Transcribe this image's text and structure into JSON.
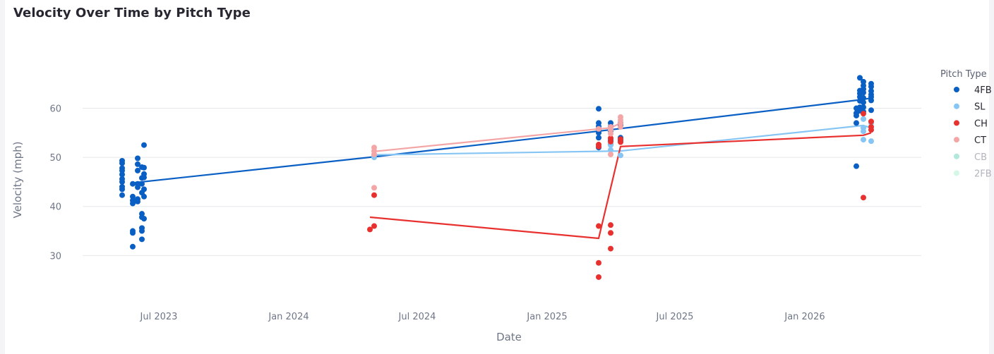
{
  "title": "Velocity Over Time by Pitch Type",
  "chart_data": {
    "type": "scatter",
    "xlabel": "Date",
    "ylabel": "Velocity (mph)",
    "x_ticks": [
      {
        "date": "2023-07-01",
        "label": "Jul 2023"
      },
      {
        "date": "2024-01-01",
        "label": "Jan 2024"
      },
      {
        "date": "2024-07-01",
        "label": "Jul 2024"
      },
      {
        "date": "2025-01-01",
        "label": "Jan 2025"
      },
      {
        "date": "2025-07-01",
        "label": "Jul 2025"
      },
      {
        "date": "2026-01-01",
        "label": "Jan 2026"
      }
    ],
    "xlim": [
      "2023-03-15",
      "2026-06-15"
    ],
    "y_ticks": [
      30,
      40,
      50,
      60
    ],
    "ylim": [
      22,
      72
    ],
    "grid": true,
    "legend": {
      "title": "Pitch Type",
      "placement": "right"
    },
    "series": [
      {
        "name": "4FB",
        "color": "#0a5fc4",
        "active": true,
        "points": [
          [
            "2023-05-10",
            49.3
          ],
          [
            "2023-05-10",
            48.8
          ],
          [
            "2023-05-10",
            47.8
          ],
          [
            "2023-05-10",
            47.3
          ],
          [
            "2023-05-10",
            46.5
          ],
          [
            "2023-05-10",
            45.6
          ],
          [
            "2023-05-10",
            45.0
          ],
          [
            "2023-05-10",
            44.0
          ],
          [
            "2023-05-10",
            43.5
          ],
          [
            "2023-05-10",
            42.3
          ],
          [
            "2023-05-25",
            44.6
          ],
          [
            "2023-05-25",
            42.0
          ],
          [
            "2023-05-25",
            41.2
          ],
          [
            "2023-05-25",
            40.6
          ],
          [
            "2023-05-25",
            35.0
          ],
          [
            "2023-05-25",
            34.6
          ],
          [
            "2023-05-25",
            31.8
          ],
          [
            "2023-06-01",
            49.8
          ],
          [
            "2023-06-01",
            48.6
          ],
          [
            "2023-06-01",
            47.3
          ],
          [
            "2023-06-01",
            44.6
          ],
          [
            "2023-06-01",
            43.9
          ],
          [
            "2023-06-01",
            41.5
          ],
          [
            "2023-06-01",
            41.0
          ],
          [
            "2023-06-07",
            48.0
          ],
          [
            "2023-06-07",
            45.8
          ],
          [
            "2023-06-07",
            44.6
          ],
          [
            "2023-06-07",
            42.8
          ],
          [
            "2023-06-07",
            38.5
          ],
          [
            "2023-06-07",
            37.8
          ],
          [
            "2023-06-07",
            35.6
          ],
          [
            "2023-06-07",
            35.0
          ],
          [
            "2023-06-07",
            33.3
          ],
          [
            "2023-06-10",
            52.5
          ],
          [
            "2023-06-10",
            47.9
          ],
          [
            "2023-06-10",
            46.6
          ],
          [
            "2023-06-10",
            45.9
          ],
          [
            "2023-06-10",
            43.5
          ],
          [
            "2023-06-10",
            42.0
          ],
          [
            "2023-06-10",
            37.5
          ],
          [
            "2025-03-15",
            59.9
          ],
          [
            "2025-03-15",
            57.0
          ],
          [
            "2025-03-15",
            56.3
          ],
          [
            "2025-03-15",
            55.8
          ],
          [
            "2025-03-15",
            55.0
          ],
          [
            "2025-03-15",
            54.0
          ],
          [
            "2025-03-15",
            52.0
          ],
          [
            "2025-04-01",
            57.0
          ],
          [
            "2025-04-01",
            56.3
          ],
          [
            "2025-04-01",
            55.4
          ],
          [
            "2025-04-01",
            53.5
          ],
          [
            "2025-04-01",
            52.6
          ],
          [
            "2025-04-15",
            57.0
          ],
          [
            "2025-04-15",
            56.5
          ],
          [
            "2025-04-15",
            54.0
          ],
          [
            "2025-04-15",
            53.4
          ],
          [
            "2026-03-15",
            60.0
          ],
          [
            "2026-03-15",
            59.0
          ],
          [
            "2026-03-15",
            58.5
          ],
          [
            "2026-03-15",
            57.0
          ],
          [
            "2026-03-15",
            48.2
          ],
          [
            "2026-03-20",
            66.2
          ],
          [
            "2026-03-20",
            63.6
          ],
          [
            "2026-03-20",
            63.0
          ],
          [
            "2026-03-20",
            62.3
          ],
          [
            "2026-03-20",
            61.5
          ],
          [
            "2026-03-20",
            60.2
          ],
          [
            "2026-03-20",
            59.5
          ],
          [
            "2026-03-25",
            65.4
          ],
          [
            "2026-03-25",
            64.6
          ],
          [
            "2026-03-25",
            63.9
          ],
          [
            "2026-03-25",
            63.2
          ],
          [
            "2026-03-25",
            62.1
          ],
          [
            "2026-03-25",
            61.2
          ],
          [
            "2026-03-25",
            60.2
          ],
          [
            "2026-03-25",
            59.3
          ],
          [
            "2026-04-05",
            65.0
          ],
          [
            "2026-04-05",
            64.4
          ],
          [
            "2026-04-05",
            63.5
          ],
          [
            "2026-04-05",
            62.8
          ],
          [
            "2026-04-05",
            62.3
          ],
          [
            "2026-04-05",
            61.6
          ],
          [
            "2026-04-05",
            59.6
          ]
        ],
        "trend": [
          [
            "2023-05-25",
            44.8
          ],
          [
            "2024-05-01",
            50.1
          ],
          [
            "2025-03-25",
            55.5
          ],
          [
            "2026-03-25",
            61.8
          ],
          [
            "2026-04-05",
            62.1
          ]
        ]
      },
      {
        "name": "SL",
        "color": "#86c5f4",
        "active": true,
        "points": [
          [
            "2024-05-01",
            50.5
          ],
          [
            "2024-05-01",
            50.0
          ],
          [
            "2025-04-01",
            51.5
          ],
          [
            "2025-04-01",
            52.5
          ],
          [
            "2025-04-15",
            50.4
          ],
          [
            "2026-03-25",
            57.8
          ],
          [
            "2026-03-25",
            56.0
          ],
          [
            "2026-03-25",
            55.3
          ],
          [
            "2026-03-25",
            53.6
          ],
          [
            "2026-04-05",
            57.0
          ],
          [
            "2026-04-05",
            55.6
          ],
          [
            "2026-04-05",
            53.3
          ]
        ],
        "trend": [
          [
            "2024-05-01",
            50.5
          ],
          [
            "2025-04-15",
            51.3
          ],
          [
            "2026-03-25",
            56.5
          ],
          [
            "2026-04-05",
            56.0
          ]
        ]
      },
      {
        "name": "CH",
        "color": "#e8312f",
        "active": true,
        "points": [
          [
            "2024-04-25",
            35.3
          ],
          [
            "2024-05-01",
            42.3
          ],
          [
            "2024-05-01",
            36.0
          ],
          [
            "2025-03-15",
            52.6
          ],
          [
            "2025-03-15",
            52.2
          ],
          [
            "2025-03-15",
            36.0
          ],
          [
            "2025-03-15",
            28.5
          ],
          [
            "2025-03-15",
            25.6
          ],
          [
            "2025-04-01",
            53.9
          ],
          [
            "2025-04-01",
            53.2
          ],
          [
            "2025-04-01",
            36.2
          ],
          [
            "2025-04-01",
            34.6
          ],
          [
            "2025-04-01",
            31.4
          ],
          [
            "2025-04-15",
            53.7
          ],
          [
            "2025-04-15",
            53.1
          ],
          [
            "2026-03-25",
            58.9
          ],
          [
            "2026-03-25",
            41.8
          ],
          [
            "2026-04-05",
            57.3
          ],
          [
            "2026-04-05",
            56.2
          ],
          [
            "2026-04-05",
            55.6
          ]
        ],
        "trend": [
          [
            "2024-04-25",
            37.8
          ],
          [
            "2025-03-15",
            33.5
          ],
          [
            "2025-04-15",
            52.2
          ],
          [
            "2026-03-25",
            54.5
          ],
          [
            "2026-04-05",
            55.0
          ]
        ]
      },
      {
        "name": "CT",
        "color": "#f4a6a6",
        "active": true,
        "points": [
          [
            "2024-05-01",
            52.0
          ],
          [
            "2024-05-01",
            51.3
          ],
          [
            "2024-05-01",
            50.6
          ],
          [
            "2024-05-01",
            43.8
          ],
          [
            "2025-03-15",
            55.8
          ],
          [
            "2025-04-01",
            56.2
          ],
          [
            "2025-04-01",
            55.6
          ],
          [
            "2025-04-01",
            54.8
          ],
          [
            "2025-04-01",
            50.6
          ],
          [
            "2025-04-15",
            58.2
          ],
          [
            "2025-04-15",
            57.6
          ],
          [
            "2025-04-15",
            56.9
          ],
          [
            "2025-04-15",
            56.2
          ]
        ],
        "trend": [
          [
            "2024-05-01",
            51.2
          ],
          [
            "2025-03-15",
            55.8
          ],
          [
            "2025-04-01",
            56.0
          ],
          [
            "2025-04-15",
            57.0
          ]
        ]
      },
      {
        "name": "CB",
        "color": "#7fd8c4",
        "active": false,
        "points": [],
        "trend": []
      },
      {
        "name": "2FB",
        "color": "#b9f1d5",
        "active": false,
        "points": [],
        "trend": []
      }
    ]
  }
}
